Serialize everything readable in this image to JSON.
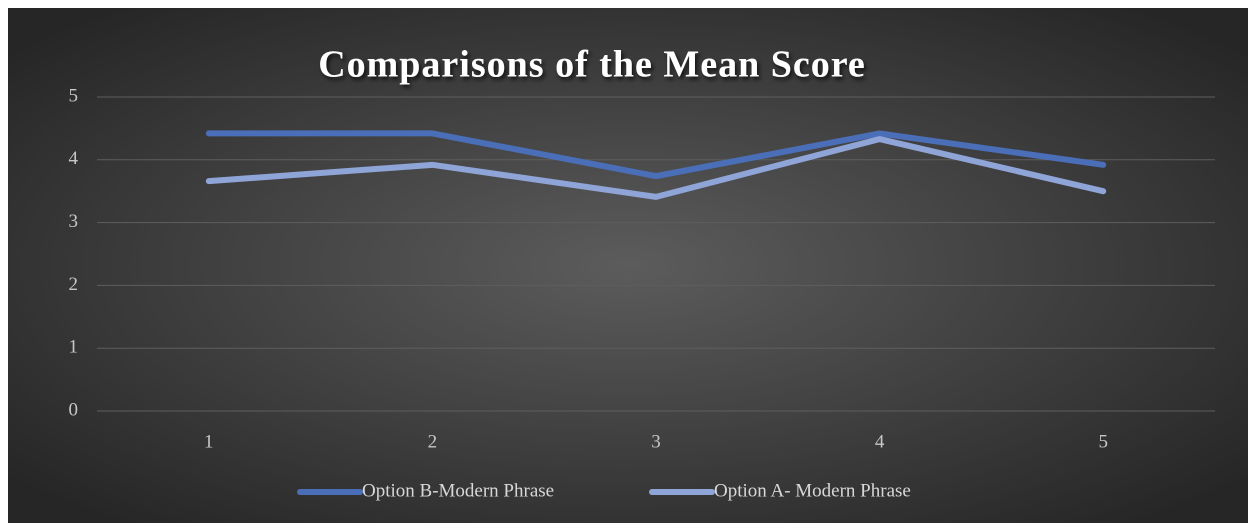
{
  "chart_data": {
    "type": "line",
    "title": "Comparisons of the Mean Score",
    "categories": [
      "1",
      "2",
      "3",
      "4",
      "5"
    ],
    "series": [
      {
        "name": "Option B-Modern Phrase",
        "color": "#4a6fb8",
        "values": [
          4.42,
          4.42,
          3.74,
          4.42,
          3.92
        ]
      },
      {
        "name": "Option A- Modern Phrase",
        "color": "#8fa5d8",
        "values": [
          3.66,
          3.92,
          3.41,
          4.33,
          3.5
        ]
      }
    ],
    "ylim": [
      0,
      5
    ],
    "yticks": [
      0,
      1,
      2,
      3,
      4,
      5
    ],
    "grid": true,
    "legend": "bottom"
  }
}
